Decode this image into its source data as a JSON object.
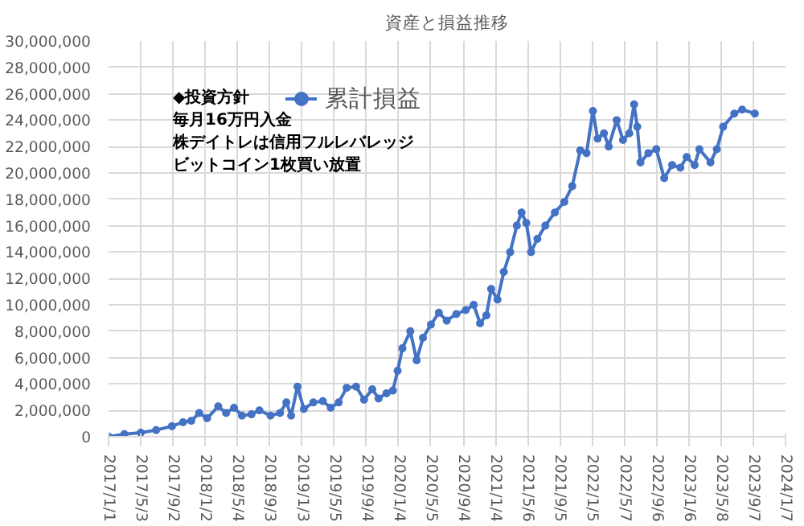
{
  "chart_data": {
    "type": "line",
    "title": "資産と損益推移",
    "x": [
      "2017-01-01",
      "2017-03-02",
      "2017-05-03",
      "2017-06-30",
      "2017-08-29",
      "2017-10-10",
      "2017-11-10",
      "2017-12-10",
      "2018-01-09",
      "2018-02-20",
      "2018-03-22",
      "2018-04-21",
      "2018-05-21",
      "2018-06-26",
      "2018-07-26",
      "2018-09-06",
      "2018-10-12",
      "2018-11-05",
      "2018-11-23",
      "2018-12-17",
      "2019-01-10",
      "2019-02-15",
      "2019-03-23",
      "2019-04-22",
      "2019-05-22",
      "2019-06-21",
      "2019-07-27",
      "2019-08-26",
      "2019-09-26",
      "2019-10-20",
      "2019-11-19",
      "2019-12-13",
      "2019-12-31",
      "2020-01-18",
      "2020-02-17",
      "2020-03-12",
      "2020-04-05",
      "2020-05-05",
      "2020-06-04",
      "2020-07-04",
      "2020-08-09",
      "2020-09-14",
      "2020-10-14",
      "2020-11-07",
      "2020-12-01",
      "2020-12-19",
      "2021-01-12",
      "2021-02-05",
      "2021-03-01",
      "2021-03-26",
      "2021-04-13",
      "2021-05-01",
      "2021-05-19",
      "2021-06-12",
      "2021-07-12",
      "2021-08-17",
      "2021-09-22",
      "2021-10-22",
      "2021-11-21",
      "2021-12-15",
      "2022-01-08",
      "2022-01-26",
      "2022-02-19",
      "2022-03-09",
      "2022-04-08",
      "2022-05-02",
      "2022-05-26",
      "2022-06-13",
      "2022-06-25",
      "2022-07-07",
      "2022-08-06",
      "2022-09-05",
      "2022-10-05",
      "2022-11-04",
      "2022-12-05",
      "2022-12-29",
      "2023-01-28",
      "2023-02-15",
      "2023-03-29",
      "2023-04-22",
      "2023-05-16",
      "2023-06-27",
      "2023-07-27",
      "2023-09-13"
    ],
    "series": [
      {
        "name": "累計損益",
        "color": "#4472c4",
        "values": [
          0,
          200000,
          300000,
          500000,
          800000,
          1100000,
          1200000,
          1800000,
          1400000,
          2300000,
          1800000,
          2200000,
          1600000,
          1700000,
          2000000,
          1600000,
          1800000,
          2600000,
          1600000,
          3800000,
          2100000,
          2600000,
          2700000,
          2200000,
          2600000,
          3700000,
          3800000,
          2800000,
          3600000,
          2900000,
          3300000,
          3500000,
          5000000,
          6700000,
          8000000,
          5800000,
          7500000,
          8500000,
          9400000,
          8800000,
          9300000,
          9600000,
          10000000,
          8600000,
          9200000,
          11200000,
          10400000,
          12500000,
          14000000,
          16000000,
          17000000,
          16200000,
          14000000,
          15000000,
          16000000,
          17000000,
          17800000,
          19000000,
          21700000,
          21500000,
          24700000,
          22600000,
          23000000,
          22000000,
          24000000,
          22500000,
          23000000,
          25200000,
          23500000,
          20800000,
          21500000,
          21800000,
          19600000,
          20600000,
          20400000,
          21200000,
          20600000,
          21800000,
          20800000,
          21800000,
          23500000,
          24500000,
          24800000,
          24500000
        ]
      }
    ],
    "xlim": [
      "2017-01-01",
      "2024-01-07"
    ],
    "xticks": [
      {
        "value": "2017-01-01",
        "label": "2017/1/1"
      },
      {
        "value": "2017-05-03",
        "label": "2017/5/3"
      },
      {
        "value": "2017-09-02",
        "label": "2017/9/2"
      },
      {
        "value": "2018-01-02",
        "label": "2018/1/2"
      },
      {
        "value": "2018-05-04",
        "label": "2018/5/4"
      },
      {
        "value": "2018-09-03",
        "label": "2018/9/3"
      },
      {
        "value": "2019-01-03",
        "label": "2019/1/3"
      },
      {
        "value": "2019-05-05",
        "label": "2019/5/5"
      },
      {
        "value": "2019-09-04",
        "label": "2019/9/4"
      },
      {
        "value": "2020-01-04",
        "label": "2020/1/4"
      },
      {
        "value": "2020-05-05",
        "label": "2020/5/5"
      },
      {
        "value": "2020-09-04",
        "label": "2020/9/4"
      },
      {
        "value": "2021-01-04",
        "label": "2021/1/4"
      },
      {
        "value": "2021-05-06",
        "label": "2021/5/6"
      },
      {
        "value": "2021-09-05",
        "label": "2021/9/5"
      },
      {
        "value": "2022-01-05",
        "label": "2022/1/5"
      },
      {
        "value": "2022-05-07",
        "label": "2022/5/7"
      },
      {
        "value": "2022-09-06",
        "label": "2022/9/6"
      },
      {
        "value": "2023-01-06",
        "label": "2023/1/6"
      },
      {
        "value": "2023-05-08",
        "label": "2023/5/8"
      },
      {
        "value": "2023-09-07",
        "label": "2023/9/7"
      },
      {
        "value": "2024-01-07",
        "label": "2024/1/7"
      }
    ],
    "ylim": [
      0,
      30000000
    ],
    "yticks": [
      {
        "value": 0,
        "label": "0"
      },
      {
        "value": 2000000,
        "label": "2,000,000"
      },
      {
        "value": 4000000,
        "label": "4,000,000"
      },
      {
        "value": 6000000,
        "label": "6,000,000"
      },
      {
        "value": 8000000,
        "label": "8,000,000"
      },
      {
        "value": 10000000,
        "label": "10,000,000"
      },
      {
        "value": 12000000,
        "label": "12,000,000"
      },
      {
        "value": 14000000,
        "label": "14,000,000"
      },
      {
        "value": 16000000,
        "label": "16,000,000"
      },
      {
        "value": 18000000,
        "label": "18,000,000"
      },
      {
        "value": 20000000,
        "label": "20,000,000"
      },
      {
        "value": 22000000,
        "label": "22,000,000"
      },
      {
        "value": 24000000,
        "label": "24,000,000"
      },
      {
        "value": 26000000,
        "label": "26,000,000"
      },
      {
        "value": 28000000,
        "label": "28,000,000"
      },
      {
        "value": 30000000,
        "label": "30,000,000"
      }
    ],
    "annotations": [
      "◆投資方針",
      "毎月16万円入金",
      "株デイトレは信用フルレバレッジ",
      "ビットコイン1枚買い放置"
    ],
    "grid": true,
    "legend": "top left",
    "marker": "circle",
    "line_style": "solid"
  }
}
